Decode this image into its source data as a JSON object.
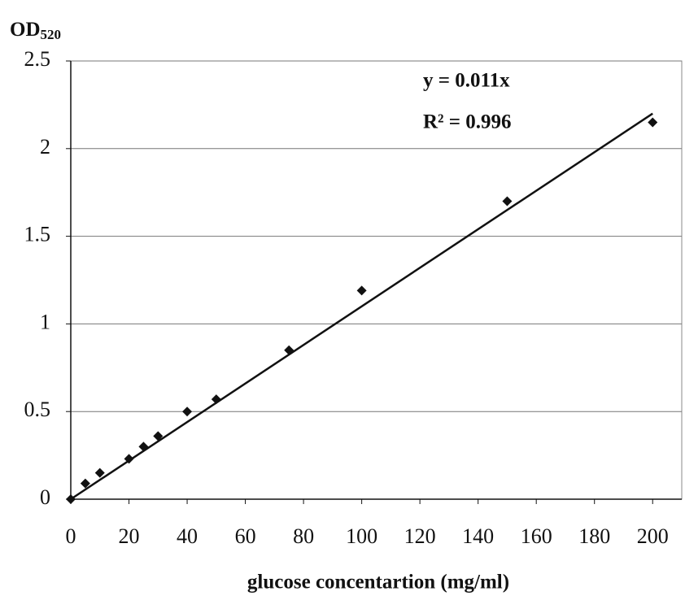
{
  "chart_data": {
    "type": "scatter",
    "ylabel": "OD",
    "ylabel_subscript": "520",
    "xlabel": "glucose concentartion (mg/ml)",
    "x": [
      0,
      5,
      10,
      20,
      25,
      30,
      40,
      50,
      75,
      100,
      150,
      200
    ],
    "series": [
      {
        "color": "#111111",
        "values": [
          0,
          0.09,
          0.15,
          0.23,
          0.3,
          0.36,
          0.5,
          0.57,
          0.85,
          1.19,
          1.7,
          2.15
        ]
      }
    ],
    "trendline": {
      "slope": 0.011,
      "equation": "y = 0.011x",
      "r2": "R² = 0.996"
    },
    "xlim": [
      0,
      210
    ],
    "xticks": [
      0,
      20,
      40,
      60,
      80,
      100,
      120,
      140,
      160,
      180,
      200
    ],
    "ylim": [
      0,
      2.5
    ],
    "yticks": [
      0,
      0.5,
      1,
      1.5,
      2,
      2.5
    ],
    "grid": true
  }
}
